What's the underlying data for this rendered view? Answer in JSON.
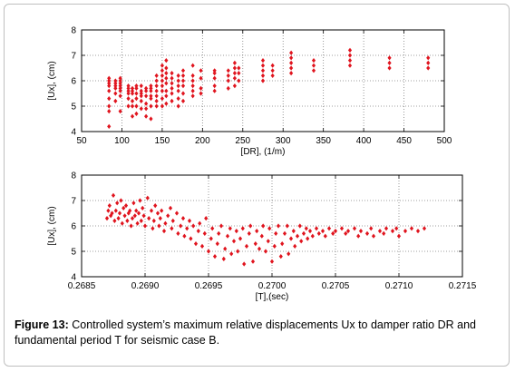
{
  "caption": {
    "label": "Figure 13:",
    "text": " Controlled system’s maximum relative displacements Ux to damper ratio DR and fundamental period T for seismic case B."
  },
  "colors": {
    "marker": "#e0141e",
    "grid": "#808080",
    "axis": "#000000"
  },
  "chart_data": [
    {
      "type": "scatter",
      "xlabel": "[DR], (1/m)",
      "ylabel": "[Ux], (cm)",
      "xlim": [
        50,
        500
      ],
      "ylim": [
        4,
        8
      ],
      "xticks": [
        50,
        100,
        150,
        200,
        250,
        300,
        350,
        400,
        450,
        500
      ],
      "yticks": [
        4,
        5,
        6,
        7,
        8
      ],
      "xtick_labels": [
        "50",
        "100",
        "150",
        "200",
        "250",
        "300",
        "350",
        "400",
        "450",
        "500"
      ],
      "ytick_labels": [
        "4",
        "5",
        "6",
        "7",
        "8"
      ],
      "grid": true,
      "marker": "diamond",
      "columns": [
        {
          "x": 84,
          "y": [
            4.2,
            4.8,
            5.0,
            5.3,
            5.6,
            5.8,
            5.9,
            6.0,
            6.1
          ]
        },
        {
          "x": 92,
          "y": [
            5.2,
            5.5,
            5.7,
            5.8,
            5.9,
            6.0
          ]
        },
        {
          "x": 98,
          "y": [
            4.8,
            5.4,
            5.6,
            5.7,
            5.8,
            5.9,
            6.0,
            6.1
          ]
        },
        {
          "x": 108,
          "y": [
            5.0,
            5.3,
            5.5,
            5.6,
            5.7,
            5.8
          ]
        },
        {
          "x": 113,
          "y": [
            4.6,
            5.0,
            5.2,
            5.5,
            5.6,
            5.7
          ]
        },
        {
          "x": 118,
          "y": [
            4.7,
            5.0,
            5.3,
            5.5,
            5.7,
            5.8
          ]
        },
        {
          "x": 124,
          "y": [
            4.9,
            5.2,
            5.4,
            5.5,
            5.6,
            5.8
          ]
        },
        {
          "x": 130,
          "y": [
            4.6,
            4.9,
            5.1,
            5.4,
            5.6,
            5.7
          ]
        },
        {
          "x": 136,
          "y": [
            4.5,
            5.0,
            5.3,
            5.4,
            5.6,
            5.7,
            5.8
          ]
        },
        {
          "x": 143,
          "y": [
            5.0,
            5.2,
            5.4,
            5.6,
            5.8,
            6.0,
            6.2
          ]
        },
        {
          "x": 150,
          "y": [
            5.0,
            5.3,
            5.6,
            5.8,
            6.0,
            6.2,
            6.4,
            6.6
          ]
        },
        {
          "x": 155,
          "y": [
            5.1,
            5.4,
            5.6,
            5.9,
            6.1,
            6.3,
            6.5,
            6.8
          ]
        },
        {
          "x": 162,
          "y": [
            5.2,
            5.5,
            5.7,
            5.9,
            6.1,
            6.3
          ]
        },
        {
          "x": 170,
          "y": [
            5.0,
            5.3,
            5.6,
            5.8,
            6.0,
            6.2
          ]
        },
        {
          "x": 176,
          "y": [
            5.2,
            5.5,
            5.8,
            6.0,
            6.2,
            6.4
          ]
        },
        {
          "x": 188,
          "y": [
            5.4,
            5.6,
            5.8,
            6.0,
            6.2,
            6.6
          ]
        },
        {
          "x": 198,
          "y": [
            5.5,
            5.7,
            6.1,
            6.4
          ]
        },
        {
          "x": 215,
          "y": [
            5.6,
            5.8,
            6.1,
            6.3,
            6.4
          ]
        },
        {
          "x": 232,
          "y": [
            5.7,
            6.0,
            6.2,
            6.4
          ]
        },
        {
          "x": 240,
          "y": [
            5.8,
            6.1,
            6.3,
            6.5,
            6.7
          ]
        },
        {
          "x": 245,
          "y": [
            6.0,
            6.3,
            6.5
          ]
        },
        {
          "x": 275,
          "y": [
            6.0,
            6.2,
            6.4,
            6.6,
            6.8
          ]
        },
        {
          "x": 287,
          "y": [
            6.2,
            6.4,
            6.6
          ]
        },
        {
          "x": 310,
          "y": [
            6.3,
            6.5,
            6.7,
            6.9,
            7.1
          ]
        },
        {
          "x": 338,
          "y": [
            6.4,
            6.6,
            6.8
          ]
        },
        {
          "x": 383,
          "y": [
            6.6,
            6.8,
            7.0,
            7.2
          ]
        },
        {
          "x": 432,
          "y": [
            6.5,
            6.7,
            6.9
          ]
        },
        {
          "x": 480,
          "y": [
            6.5,
            6.7,
            6.9
          ]
        }
      ]
    },
    {
      "type": "scatter",
      "xlabel": "[T],(sec)",
      "ylabel": "[Ux], (cm)",
      "xlim": [
        0.2685,
        0.2715
      ],
      "ylim": [
        4,
        8
      ],
      "xticks": [
        0.2685,
        0.269,
        0.2695,
        0.27,
        0.2705,
        0.271,
        0.2715
      ],
      "yticks": [
        4,
        5,
        6,
        7,
        8
      ],
      "xtick_labels": [
        "0.2685",
        "0.2690",
        "0.2695",
        "0.2700",
        "0.2705",
        "0.2710",
        "0.2715"
      ],
      "ytick_labels": [
        "4",
        "5",
        "6",
        "7",
        "8"
      ],
      "grid": true,
      "marker": "diamond",
      "points": [
        [
          0.2687,
          6.3
        ],
        [
          0.26871,
          6.6
        ],
        [
          0.26872,
          6.8
        ],
        [
          0.26873,
          6.4
        ],
        [
          0.26874,
          6.5
        ],
        [
          0.26875,
          7.2
        ],
        [
          0.26876,
          6.2
        ],
        [
          0.26877,
          6.6
        ],
        [
          0.26878,
          6.9
        ],
        [
          0.26879,
          6.3
        ],
        [
          0.2688,
          6.5
        ],
        [
          0.26881,
          7.0
        ],
        [
          0.26882,
          6.1
        ],
        [
          0.26883,
          6.7
        ],
        [
          0.26884,
          6.4
        ],
        [
          0.26885,
          6.8
        ],
        [
          0.26886,
          6.2
        ],
        [
          0.26887,
          6.5
        ],
        [
          0.26888,
          6.6
        ],
        [
          0.26889,
          6.0
        ],
        [
          0.2689,
          6.3
        ],
        [
          0.26891,
          6.9
        ],
        [
          0.26892,
          6.4
        ],
        [
          0.26893,
          6.6
        ],
        [
          0.26894,
          6.1
        ],
        [
          0.26895,
          6.5
        ],
        [
          0.26896,
          7.0
        ],
        [
          0.26897,
          6.2
        ],
        [
          0.26898,
          6.7
        ],
        [
          0.26899,
          6.4
        ],
        [
          0.269,
          6.0
        ],
        [
          0.26902,
          7.1
        ],
        [
          0.26903,
          6.3
        ],
        [
          0.26905,
          6.6
        ],
        [
          0.26906,
          5.9
        ],
        [
          0.26907,
          6.2
        ],
        [
          0.26908,
          6.8
        ],
        [
          0.2691,
          6.5
        ],
        [
          0.26911,
          6.0
        ],
        [
          0.26912,
          6.3
        ],
        [
          0.26913,
          6.6
        ],
        [
          0.26915,
          5.8
        ],
        [
          0.26916,
          6.1
        ],
        [
          0.26918,
          6.4
        ],
        [
          0.2692,
          6.7
        ],
        [
          0.26921,
          5.9
        ],
        [
          0.26922,
          6.2
        ],
        [
          0.26925,
          6.5
        ],
        [
          0.26926,
          5.7
        ],
        [
          0.26928,
          6.0
        ],
        [
          0.2693,
          6.3
        ],
        [
          0.26931,
          5.6
        ],
        [
          0.26933,
          5.9
        ],
        [
          0.26935,
          6.2
        ],
        [
          0.26936,
          5.5
        ],
        [
          0.26938,
          6.0
        ],
        [
          0.2694,
          5.3
        ],
        [
          0.26942,
          5.8
        ],
        [
          0.26943,
          6.1
        ],
        [
          0.26945,
          5.2
        ],
        [
          0.26947,
          5.7
        ],
        [
          0.26948,
          6.3
        ],
        [
          0.2695,
          5.0
        ],
        [
          0.26952,
          5.5
        ],
        [
          0.26953,
          5.9
        ],
        [
          0.26955,
          4.8
        ],
        [
          0.26957,
          5.3
        ],
        [
          0.26958,
          5.7
        ],
        [
          0.2696,
          6.0
        ],
        [
          0.26962,
          4.7
        ],
        [
          0.26963,
          5.1
        ],
        [
          0.26965,
          5.6
        ],
        [
          0.26967,
          5.9
        ],
        [
          0.26968,
          4.9
        ],
        [
          0.2697,
          5.4
        ],
        [
          0.26972,
          5.8
        ],
        [
          0.26973,
          5.0
        ],
        [
          0.26975,
          5.5
        ],
        [
          0.26977,
          5.9
        ],
        [
          0.26978,
          4.5
        ],
        [
          0.2698,
          5.2
        ],
        [
          0.26982,
          5.7
        ],
        [
          0.26983,
          6.0
        ],
        [
          0.26985,
          4.6
        ],
        [
          0.26987,
          5.3
        ],
        [
          0.26988,
          5.8
        ],
        [
          0.2699,
          5.1
        ],
        [
          0.26992,
          5.6
        ],
        [
          0.26993,
          6.0
        ],
        [
          0.26995,
          5.0
        ],
        [
          0.26997,
          5.4
        ],
        [
          0.26998,
          5.9
        ],
        [
          0.27,
          4.6
        ],
        [
          0.27002,
          5.2
        ],
        [
          0.27003,
          5.7
        ],
        [
          0.27005,
          6.0
        ],
        [
          0.27007,
          4.8
        ],
        [
          0.27008,
          5.3
        ],
        [
          0.2701,
          5.7
        ],
        [
          0.27012,
          6.0
        ],
        [
          0.27013,
          4.9
        ],
        [
          0.27015,
          5.5
        ],
        [
          0.27017,
          5.8
        ],
        [
          0.27018,
          5.2
        ],
        [
          0.2702,
          5.6
        ],
        [
          0.27022,
          6.0
        ],
        [
          0.27023,
          5.4
        ],
        [
          0.27025,
          5.7
        ],
        [
          0.27027,
          5.9
        ],
        [
          0.27028,
          5.5
        ],
        [
          0.2703,
          5.8
        ],
        [
          0.27032,
          5.6
        ],
        [
          0.27035,
          5.9
        ],
        [
          0.27037,
          5.7
        ],
        [
          0.2704,
          5.8
        ],
        [
          0.27042,
          5.6
        ],
        [
          0.27045,
          5.9
        ],
        [
          0.27048,
          5.7
        ],
        [
          0.2705,
          5.8
        ],
        [
          0.27055,
          5.9
        ],
        [
          0.27058,
          5.7
        ],
        [
          0.2706,
          5.8
        ],
        [
          0.27065,
          5.9
        ],
        [
          0.27068,
          5.6
        ],
        [
          0.2707,
          5.8
        ],
        [
          0.27075,
          5.7
        ],
        [
          0.27078,
          5.9
        ],
        [
          0.2708,
          5.6
        ],
        [
          0.27085,
          5.8
        ],
        [
          0.27088,
          5.7
        ],
        [
          0.2709,
          5.9
        ],
        [
          0.27095,
          5.8
        ],
        [
          0.27098,
          5.9
        ],
        [
          0.271,
          5.6
        ],
        [
          0.27105,
          5.8
        ],
        [
          0.2711,
          5.9
        ],
        [
          0.27115,
          5.8
        ],
        [
          0.2712,
          5.9
        ]
      ]
    }
  ]
}
